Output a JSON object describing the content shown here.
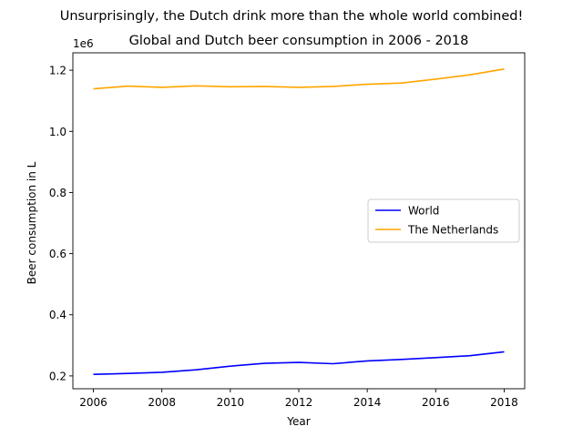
{
  "suptitle": "Unsurprisingly, the Dutch drink more than the whole world combined!",
  "chart_data": {
    "type": "line",
    "title": "Global and Dutch beer consumption in 2006 - 2018",
    "xlabel": "Year",
    "ylabel": "Beer consumption in L",
    "y_offset_label": "1e6",
    "xlim": [
      2005.4,
      2018.6
    ],
    "ylim": [
      0.158,
      1.257
    ],
    "y_multiplier": 1000000,
    "x_ticks": [
      2006,
      2008,
      2010,
      2012,
      2014,
      2016,
      2018
    ],
    "y_ticks": [
      0.2,
      0.4,
      0.6,
      0.8,
      1.0,
      1.2
    ],
    "y_tick_labels": [
      "0.2",
      "0.4",
      "0.6",
      "0.8",
      "1.0",
      "1.2"
    ],
    "x": [
      2006,
      2007,
      2008,
      2009,
      2010,
      2011,
      2012,
      2013,
      2014,
      2015,
      2016,
      2017,
      2018
    ],
    "series": [
      {
        "name": "World",
        "color": "#0000ff",
        "values": [
          0.205,
          0.208,
          0.212,
          0.22,
          0.232,
          0.241,
          0.244,
          0.24,
          0.249,
          0.254,
          0.26,
          0.266,
          0.279
        ]
      },
      {
        "name": "The Netherlands",
        "color": "#ffa500",
        "values": [
          1.139,
          1.148,
          1.144,
          1.149,
          1.146,
          1.147,
          1.144,
          1.147,
          1.154,
          1.158,
          1.171,
          1.185,
          1.204
        ]
      }
    ],
    "legend_position": "center-right",
    "grid": false
  }
}
